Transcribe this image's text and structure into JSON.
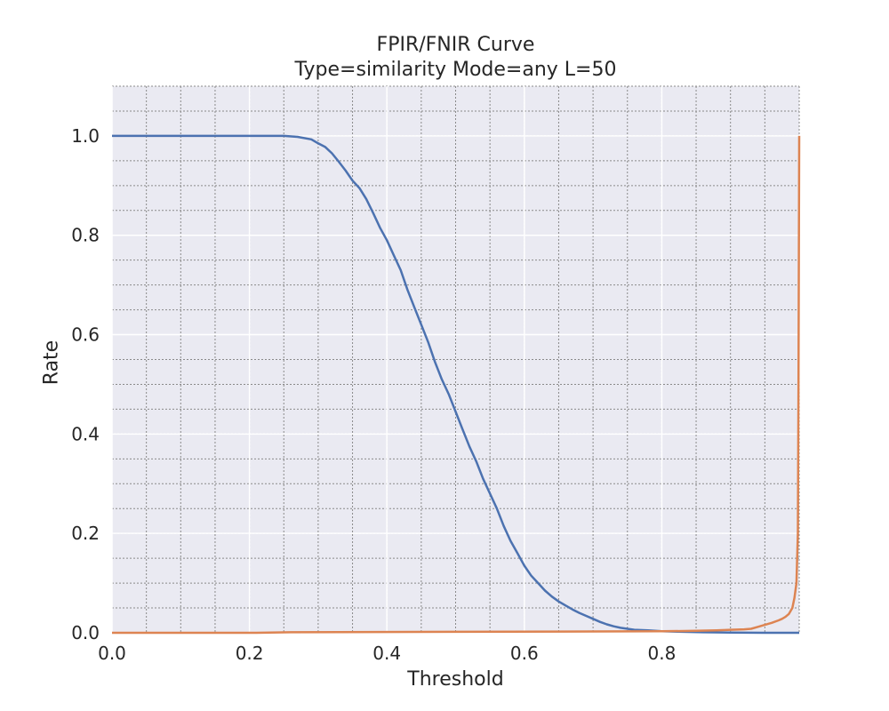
{
  "chart_data": {
    "type": "line",
    "title": "FPIR/FNIR Curve",
    "subtitle": "Type=similarity Mode=any L=50",
    "xlabel": "Threshold",
    "ylabel": "Rate",
    "xlim": [
      0.0,
      1.0
    ],
    "ylim": [
      0.0,
      1.1
    ],
    "xticks": [
      "0.0",
      "0.2",
      "0.4",
      "0.6",
      "0.8"
    ],
    "xtick_values": [
      0.0,
      0.2,
      0.4,
      0.6,
      0.8
    ],
    "yticks": [
      "0.0",
      "0.2",
      "0.4",
      "0.6",
      "0.8",
      "1.0"
    ],
    "ytick_values": [
      0.0,
      0.2,
      0.4,
      0.6,
      0.8,
      1.0
    ],
    "grid": true,
    "minor_grid": true,
    "background": "#eaeaf2",
    "series": [
      {
        "color": "#4c72b0",
        "x": [
          0.0,
          0.25,
          0.27,
          0.29,
          0.3,
          0.31,
          0.32,
          0.33,
          0.34,
          0.35,
          0.36,
          0.37,
          0.38,
          0.39,
          0.4,
          0.41,
          0.42,
          0.43,
          0.44,
          0.45,
          0.46,
          0.47,
          0.48,
          0.49,
          0.5,
          0.51,
          0.52,
          0.53,
          0.54,
          0.55,
          0.56,
          0.57,
          0.58,
          0.59,
          0.6,
          0.61,
          0.62,
          0.63,
          0.64,
          0.65,
          0.66,
          0.67,
          0.68,
          0.69,
          0.7,
          0.71,
          0.72,
          0.73,
          0.74,
          0.75,
          0.76,
          0.78,
          0.8,
          0.83,
          0.86,
          0.9,
          0.95,
          1.0
        ],
        "y": [
          1.0,
          1.0,
          0.998,
          0.993,
          0.985,
          0.978,
          0.965,
          0.948,
          0.93,
          0.91,
          0.895,
          0.873,
          0.845,
          0.815,
          0.79,
          0.76,
          0.73,
          0.69,
          0.655,
          0.62,
          0.585,
          0.545,
          0.51,
          0.48,
          0.445,
          0.41,
          0.375,
          0.345,
          0.31,
          0.28,
          0.25,
          0.215,
          0.185,
          0.16,
          0.135,
          0.115,
          0.1,
          0.085,
          0.073,
          0.063,
          0.055,
          0.047,
          0.04,
          0.034,
          0.028,
          0.022,
          0.017,
          0.013,
          0.01,
          0.008,
          0.006,
          0.005,
          0.003,
          0.002,
          0.001,
          0.0005,
          0.0,
          0.0
        ]
      },
      {
        "color": "#dd8452",
        "x": [
          0.0,
          0.21,
          0.26,
          0.5,
          0.8,
          0.85,
          0.88,
          0.9,
          0.92,
          0.93,
          0.94,
          0.95,
          0.96,
          0.97,
          0.975,
          0.98,
          0.985,
          0.99,
          0.993,
          0.996,
          0.998,
          0.999,
          1.0
        ],
        "y": [
          0.0,
          0.0,
          0.001,
          0.002,
          0.003,
          0.004,
          0.005,
          0.006,
          0.007,
          0.008,
          0.012,
          0.016,
          0.02,
          0.025,
          0.028,
          0.032,
          0.038,
          0.05,
          0.07,
          0.1,
          0.2,
          0.5,
          1.0
        ]
      }
    ]
  }
}
